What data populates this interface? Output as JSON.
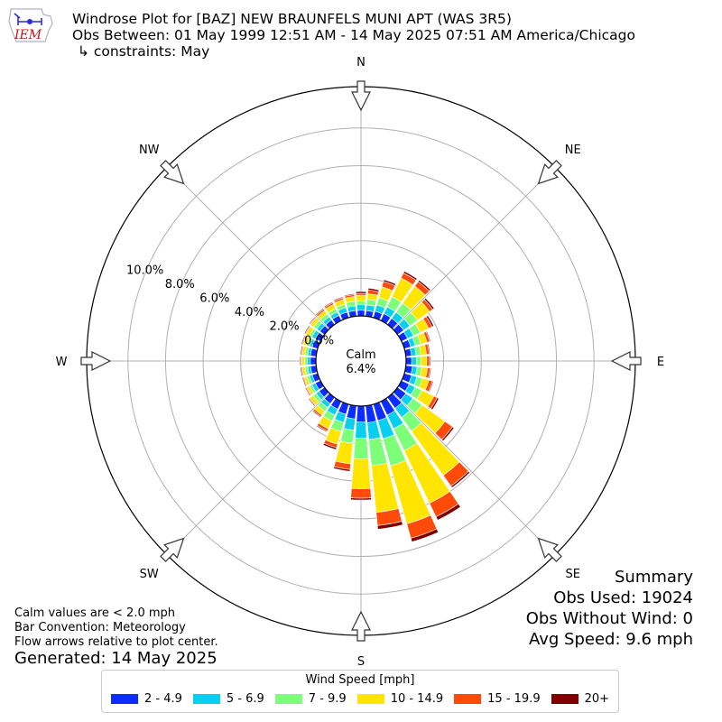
{
  "header": {
    "logo_text": "IEM",
    "title_lines": [
      "Windrose Plot for [BAZ] NEW BRAUNFELS MUNI APT (WAS 3R5)",
      "Obs Between: 01 May 1999 12:51 AM - 14 May 2025 07:51 AM America/Chicago",
      "↳ constraints: May"
    ]
  },
  "notes": [
    "Calm values are < 2.0 mph",
    "Bar Convention: Meteorology",
    "Flow arrows relative to plot center."
  ],
  "generated": "Generated: 14 May 2025",
  "summary": {
    "title": "Summary",
    "obs_used": "Obs Used: 19024",
    "obs_without_wind": "Obs Without Wind: 0",
    "avg_speed": "Avg Speed: 9.6 mph"
  },
  "legend": {
    "title": "Wind Speed [mph]",
    "items": [
      {
        "label": "2 - 4.9",
        "color": "#0d2cff"
      },
      {
        "label": "5 - 6.9",
        "color": "#06d0ef"
      },
      {
        "label": "7 - 9.9",
        "color": "#7dff7a"
      },
      {
        "label": "10 - 14.9",
        "color": "#ffe500"
      },
      {
        "label": "15 - 19.9",
        "color": "#ff4b0a"
      },
      {
        "label": "20+",
        "color": "#800000"
      }
    ]
  },
  "chart_data": {
    "type": "windrose",
    "calm": {
      "label": "Calm",
      "value_label": "6.4%",
      "value": 6.4
    },
    "compass_labels": [
      "N",
      "NE",
      "E",
      "SE",
      "S",
      "SW",
      "W",
      "NW"
    ],
    "radial_ticks": [
      "0.0%",
      "2.0%",
      "4.0%",
      "6.0%",
      "8.0%",
      "10.0%"
    ],
    "rmax_percent": 12.2,
    "direction_step_deg": 10,
    "directions_deg": [
      0,
      10,
      20,
      30,
      40,
      50,
      60,
      70,
      80,
      90,
      100,
      110,
      120,
      130,
      140,
      150,
      160,
      170,
      180,
      190,
      200,
      210,
      220,
      230,
      240,
      250,
      260,
      270,
      280,
      290,
      300,
      310,
      320,
      330,
      340,
      350
    ],
    "speed_bins": [
      "2 - 4.9",
      "5 - 6.9",
      "7 - 9.9",
      "10 - 14.9",
      "15 - 19.9",
      "20+"
    ],
    "cumulative_percent": [
      [
        0.3,
        0.6,
        0.8,
        1.1,
        1.2,
        1.3
      ],
      [
        0.3,
        0.6,
        0.9,
        1.2,
        1.4,
        1.5
      ],
      [
        0.35,
        0.7,
        1.1,
        1.7,
        2.0,
        2.1
      ],
      [
        0.4,
        0.8,
        1.4,
        2.5,
        2.8,
        2.9
      ],
      [
        0.4,
        0.8,
        1.4,
        2.5,
        2.8,
        2.9
      ],
      [
        0.4,
        0.8,
        1.3,
        2.1,
        2.3,
        2.4
      ],
      [
        0.35,
        0.7,
        1.1,
        1.6,
        1.8,
        1.9
      ],
      [
        0.35,
        0.6,
        0.9,
        1.25,
        1.4,
        1.45
      ],
      [
        0.3,
        0.55,
        0.8,
        1.1,
        1.25,
        1.3
      ],
      [
        0.3,
        0.55,
        0.8,
        1.1,
        1.25,
        1.3
      ],
      [
        0.35,
        0.6,
        0.85,
        1.15,
        1.3,
        1.35
      ],
      [
        0.4,
        0.7,
        1.0,
        1.35,
        1.55,
        1.6
      ],
      [
        0.45,
        0.8,
        1.2,
        1.9,
        2.1,
        2.2
      ],
      [
        0.55,
        1.0,
        1.6,
        3.1,
        3.6,
        3.7
      ],
      [
        0.7,
        1.3,
        2.2,
        5.1,
        5.8,
        5.9
      ],
      [
        0.8,
        1.6,
        2.9,
        6.0,
        6.8,
        7.0
      ],
      [
        0.9,
        1.9,
        3.4,
        6.6,
        7.4,
        7.6
      ],
      [
        0.9,
        1.8,
        3.2,
        5.7,
        6.4,
        6.6
      ],
      [
        0.85,
        1.7,
        2.8,
        4.4,
        4.9,
        5.0
      ],
      [
        0.7,
        1.3,
        2.0,
        3.1,
        3.4,
        3.5
      ],
      [
        0.55,
        1.0,
        1.5,
        2.2,
        2.4,
        2.5
      ],
      [
        0.45,
        0.8,
        1.15,
        1.6,
        1.75,
        1.8
      ],
      [
        0.4,
        0.65,
        0.9,
        1.15,
        1.25,
        1.3
      ],
      [
        0.35,
        0.55,
        0.75,
        0.95,
        1.0,
        1.05
      ],
      [
        0.3,
        0.5,
        0.65,
        0.8,
        0.85,
        0.9
      ],
      [
        0.3,
        0.45,
        0.6,
        0.75,
        0.8,
        0.85
      ],
      [
        0.3,
        0.45,
        0.6,
        0.75,
        0.8,
        0.85
      ],
      [
        0.3,
        0.45,
        0.6,
        0.75,
        0.8,
        0.85
      ],
      [
        0.3,
        0.45,
        0.6,
        0.75,
        0.8,
        0.85
      ],
      [
        0.3,
        0.45,
        0.6,
        0.8,
        0.85,
        0.9
      ],
      [
        0.3,
        0.5,
        0.65,
        0.85,
        0.9,
        0.95
      ],
      [
        0.3,
        0.5,
        0.7,
        0.9,
        0.95,
        1.0
      ],
      [
        0.3,
        0.5,
        0.7,
        0.9,
        1.0,
        1.05
      ],
      [
        0.3,
        0.5,
        0.7,
        0.95,
        1.05,
        1.1
      ],
      [
        0.3,
        0.55,
        0.75,
        1.0,
        1.1,
        1.15
      ],
      [
        0.3,
        0.55,
        0.8,
        1.05,
        1.15,
        1.2
      ]
    ]
  }
}
